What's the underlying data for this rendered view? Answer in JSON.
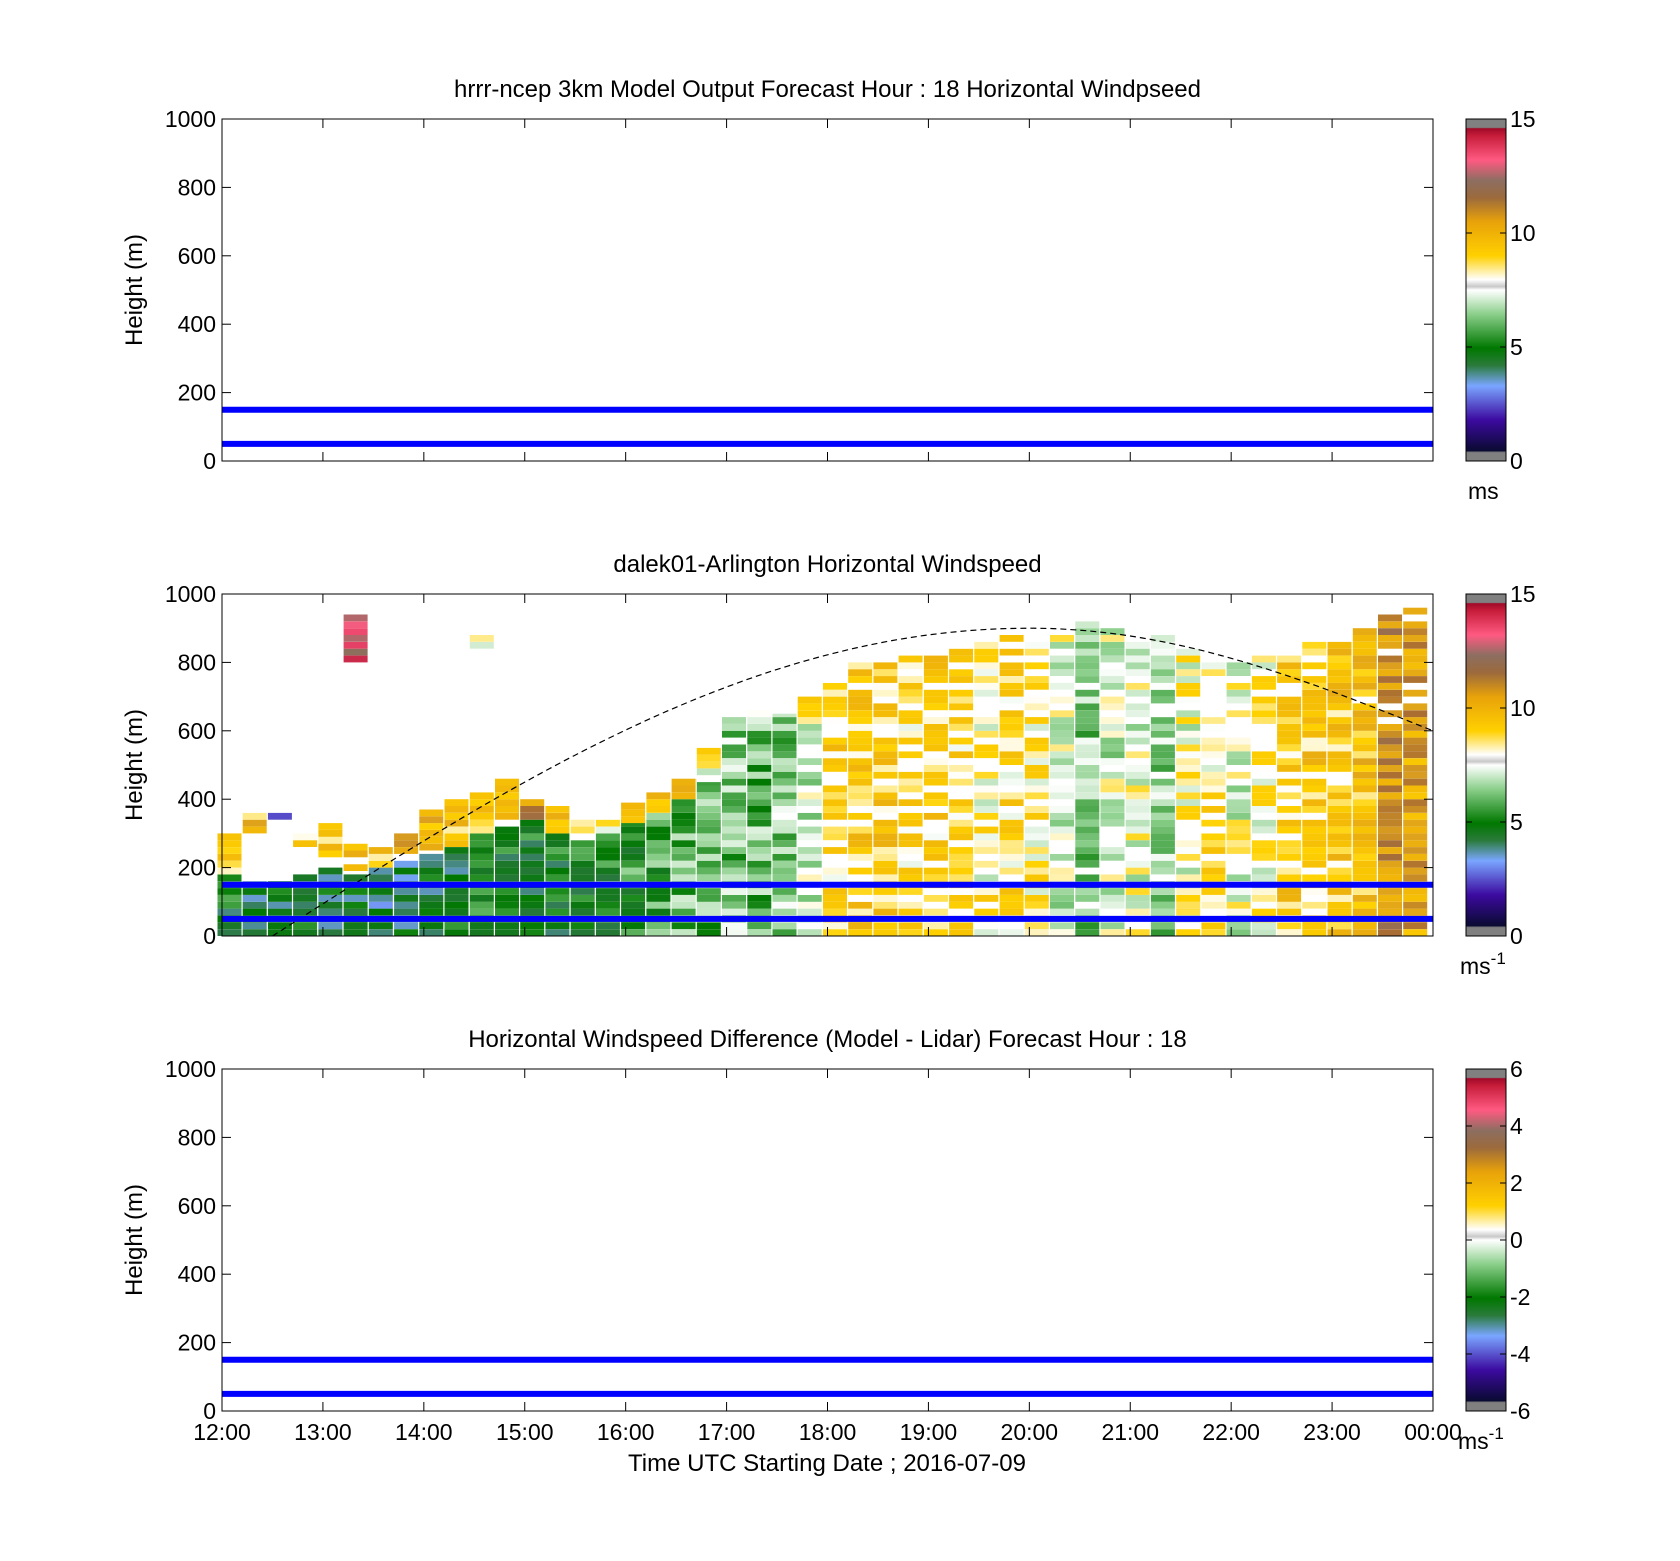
{
  "figure": {
    "background": "#ffffff"
  },
  "chart_data": [
    {
      "type": "heatmap",
      "title": "hrrr-ncep 3km Model Output   Forecast Hour : 18 Horizontal Windpseed",
      "xlabel": "",
      "ylabel": "Height (m)",
      "xlim": [
        "12:00",
        "00:00"
      ],
      "ylim": [
        0,
        1000
      ],
      "yticks": [
        0,
        200,
        400,
        600,
        800,
        1000
      ],
      "xticks": [],
      "grid": false,
      "data": "no model values shown (panel empty)",
      "reference_lines": {
        "heights_m": [
          50,
          150
        ],
        "color": "#0000ff"
      },
      "colorbar": {
        "min": 0,
        "max": 15,
        "ticks": [
          0,
          5,
          10,
          15
        ],
        "unit_base": "ms",
        "unit_exp": ""
      }
    },
    {
      "type": "heatmap",
      "title": "dalek01-Arlington  Horizontal Windspeed",
      "xlabel": "",
      "ylabel": "Height (m)",
      "xlim": [
        "12:00",
        "00:00"
      ],
      "ylim": [
        0,
        1000
      ],
      "yticks": [
        0,
        200,
        400,
        600,
        800,
        1000
      ],
      "xticks": [],
      "grid": false,
      "x_hours_since_1200": [
        0.08,
        0.33,
        0.58,
        0.83,
        1.08,
        1.33,
        1.58,
        1.83,
        2.08,
        2.33,
        2.58,
        2.83,
        3.08,
        3.33,
        3.58,
        3.83,
        4.08,
        4.33,
        4.58,
        4.83,
        5.08,
        5.33,
        5.58,
        5.83,
        6.08,
        6.33,
        6.58,
        6.83,
        7.08,
        7.33,
        7.58,
        7.83,
        8.08,
        8.33,
        8.58,
        8.83,
        9.08,
        9.33,
        9.58,
        9.83,
        10.08,
        10.33,
        10.58,
        10.83,
        11.08,
        11.33,
        11.58,
        11.83
      ],
      "columns": [
        {
          "t": 0.08,
          "bands": [
            [
              0,
              180,
              4.5
            ],
            [
              180,
              300,
              8.5
            ]
          ]
        },
        {
          "t": 0.33,
          "bands": [
            [
              0,
              160,
              4.2
            ],
            [
              300,
              360,
              9.5
            ]
          ]
        },
        {
          "t": 0.58,
          "bands": [
            [
              0,
              150,
              4.0
            ],
            [
              340,
              360,
              1.0
            ]
          ]
        },
        {
          "t": 0.83,
          "bands": [
            [
              0,
              170,
              4.2
            ],
            [
              260,
              320,
              8.8
            ]
          ]
        },
        {
          "t": 1.08,
          "bands": [
            [
              0,
              190,
              4.0
            ],
            [
              230,
              330,
              9.5
            ]
          ]
        },
        {
          "t": 1.33,
          "bands": [
            [
              0,
              180,
              3.8
            ],
            [
              190,
              280,
              9.0
            ],
            [
              780,
              930,
              13.5
            ]
          ]
        },
        {
          "t": 1.58,
          "bands": [
            [
              0,
              200,
              3.8
            ],
            [
              200,
              260,
              9.0
            ]
          ]
        },
        {
          "t": 1.83,
          "bands": [
            [
              0,
              220,
              4.0
            ],
            [
              240,
              290,
              10.5
            ]
          ]
        },
        {
          "t": 2.08,
          "bands": [
            [
              0,
              240,
              4.2
            ],
            [
              250,
              360,
              9.5
            ]
          ]
        },
        {
          "t": 2.33,
          "bands": [
            [
              0,
              260,
              4.2
            ],
            [
              260,
              400,
              9.2
            ]
          ]
        },
        {
          "t": 2.58,
          "bands": [
            [
              0,
              300,
              4.5
            ],
            [
              300,
              420,
              8.6
            ],
            [
              840,
              870,
              7.5
            ]
          ]
        },
        {
          "t": 2.83,
          "bands": [
            [
              0,
              320,
              4.5
            ],
            [
              320,
              450,
              9.0
            ]
          ]
        },
        {
          "t": 3.08,
          "bands": [
            [
              0,
              340,
              4.5
            ],
            [
              340,
              400,
              10.8
            ]
          ]
        },
        {
          "t": 3.33,
          "bands": [
            [
              0,
              300,
              4.6
            ],
            [
              300,
              370,
              9.0
            ]
          ]
        },
        {
          "t": 3.58,
          "bands": [
            [
              0,
              280,
              4.8
            ],
            [
              280,
              340,
              8.8
            ]
          ]
        },
        {
          "t": 3.83,
          "bands": [
            [
              0,
              300,
              5.0
            ],
            [
              300,
              350,
              8.5
            ]
          ]
        },
        {
          "t": 4.08,
          "bands": [
            [
              0,
              330,
              5.2
            ],
            [
              330,
              380,
              9.0
            ]
          ]
        },
        {
          "t": 4.33,
          "bands": [
            [
              0,
              360,
              5.6
            ],
            [
              360,
              420,
              9.5
            ]
          ]
        },
        {
          "t": 4.58,
          "bands": [
            [
              0,
              400,
              5.8
            ],
            [
              400,
              460,
              10.5
            ]
          ]
        },
        {
          "t": 4.83,
          "bands": [
            [
              0,
              450,
              6.0
            ],
            [
              450,
              550,
              8.0
            ]
          ]
        },
        {
          "t": 5.08,
          "bands": [
            [
              0,
              600,
              6.2
            ],
            [
              600,
              640,
              7.5
            ]
          ]
        },
        {
          "t": 5.33,
          "bands": [
            [
              0,
              640,
              6.0
            ],
            [
              640,
              660,
              7.5
            ]
          ]
        },
        {
          "t": 5.58,
          "bands": [
            [
              0,
              650,
              6.3
            ],
            [
              650,
              680,
              7.0
            ]
          ]
        },
        {
          "t": 5.83,
          "bands": [
            [
              0,
              640,
              7.0
            ],
            [
              640,
              700,
              8.5
            ]
          ]
        },
        {
          "t": 6.08,
          "bands": [
            [
              0,
              760,
              8.6
            ]
          ]
        },
        {
          "t": 6.33,
          "bands": [
            [
              0,
              800,
              8.8
            ]
          ]
        },
        {
          "t": 6.58,
          "bands": [
            [
              0,
              800,
              8.9
            ]
          ]
        },
        {
          "t": 6.83,
          "bands": [
            [
              0,
              820,
              8.5
            ]
          ]
        },
        {
          "t": 7.08,
          "bands": [
            [
              0,
              830,
              8.7
            ]
          ]
        },
        {
          "t": 7.33,
          "bands": [
            [
              0,
              850,
              8.4
            ]
          ]
        },
        {
          "t": 7.58,
          "bands": [
            [
              0,
              860,
              8.0
            ]
          ]
        },
        {
          "t": 7.83,
          "bands": [
            [
              0,
              870,
              8.3
            ]
          ]
        },
        {
          "t": 8.08,
          "bands": [
            [
              0,
              880,
              7.9
            ]
          ]
        },
        {
          "t": 8.33,
          "bands": [
            [
              0,
              900,
              7.3
            ]
          ]
        },
        {
          "t": 8.58,
          "bands": [
            [
              0,
              910,
              6.5
            ]
          ]
        },
        {
          "t": 8.83,
          "bands": [
            [
              0,
              900,
              7.2
            ]
          ]
        },
        {
          "t": 9.08,
          "bands": [
            [
              0,
              890,
              7.4
            ]
          ]
        },
        {
          "t": 9.33,
          "bands": [
            [
              0,
              880,
              6.6
            ]
          ]
        },
        {
          "t": 9.58,
          "bands": [
            [
              0,
              850,
              7.6
            ]
          ]
        },
        {
          "t": 9.83,
          "bands": [
            [
              0,
              830,
              8.2
            ]
          ]
        },
        {
          "t": 10.08,
          "bands": [
            [
              0,
              800,
              7.4
            ]
          ]
        },
        {
          "t": 10.33,
          "bands": [
            [
              0,
              820,
              7.8
            ]
          ]
        },
        {
          "t": 10.58,
          "bands": [
            [
              0,
              840,
              8.8
            ]
          ]
        },
        {
          "t": 10.83,
          "bands": [
            [
              0,
              850,
              8.9
            ]
          ]
        },
        {
          "t": 11.08,
          "bands": [
            [
              0,
              870,
              9.0
            ]
          ]
        },
        {
          "t": 11.33,
          "bands": [
            [
              0,
              900,
              9.4
            ]
          ]
        },
        {
          "t": 11.58,
          "bands": [
            [
              0,
              960,
              11.0
            ]
          ]
        },
        {
          "t": 11.83,
          "bands": [
            [
              0,
              950,
              10.4
            ]
          ]
        }
      ],
      "boundary_layer_curve": {
        "style": "dashed",
        "color": "#000000",
        "start_hour": 0.5,
        "peak_hour": 8.0,
        "peak_height_m": 900,
        "end_hour": 12.0,
        "end_height_m": 600
      },
      "reference_lines": {
        "heights_m": [
          50,
          150
        ],
        "color": "#0000ff"
      },
      "colorbar": {
        "min": 0,
        "max": 15,
        "ticks": [
          0,
          5,
          10,
          15
        ],
        "unit_base": "ms",
        "unit_exp": "-1"
      }
    },
    {
      "type": "heatmap",
      "title": "Horizontal Windspeed Difference (Model - Lidar) Forecast Hour : 18",
      "xlabel": "Time UTC  Starting Date ; 2016-07-09",
      "ylabel": "Height (m)",
      "xlim": [
        "12:00",
        "00:00"
      ],
      "ylim": [
        0,
        1000
      ],
      "yticks": [
        0,
        200,
        400,
        600,
        800,
        1000
      ],
      "xticks": [
        "12:00",
        "13:00",
        "14:00",
        "15:00",
        "16:00",
        "17:00",
        "18:00",
        "19:00",
        "20:00",
        "21:00",
        "22:00",
        "23:00",
        "00:00"
      ],
      "grid": false,
      "data": "no difference values shown (panel empty)",
      "reference_lines": {
        "heights_m": [
          50,
          150
        ],
        "color": "#0000ff"
      },
      "colorbar": {
        "min": -6,
        "max": 6,
        "ticks": [
          -6,
          -4,
          -2,
          0,
          2,
          4,
          6
        ],
        "unit_base": "ms",
        "unit_exp": "-1"
      }
    }
  ]
}
